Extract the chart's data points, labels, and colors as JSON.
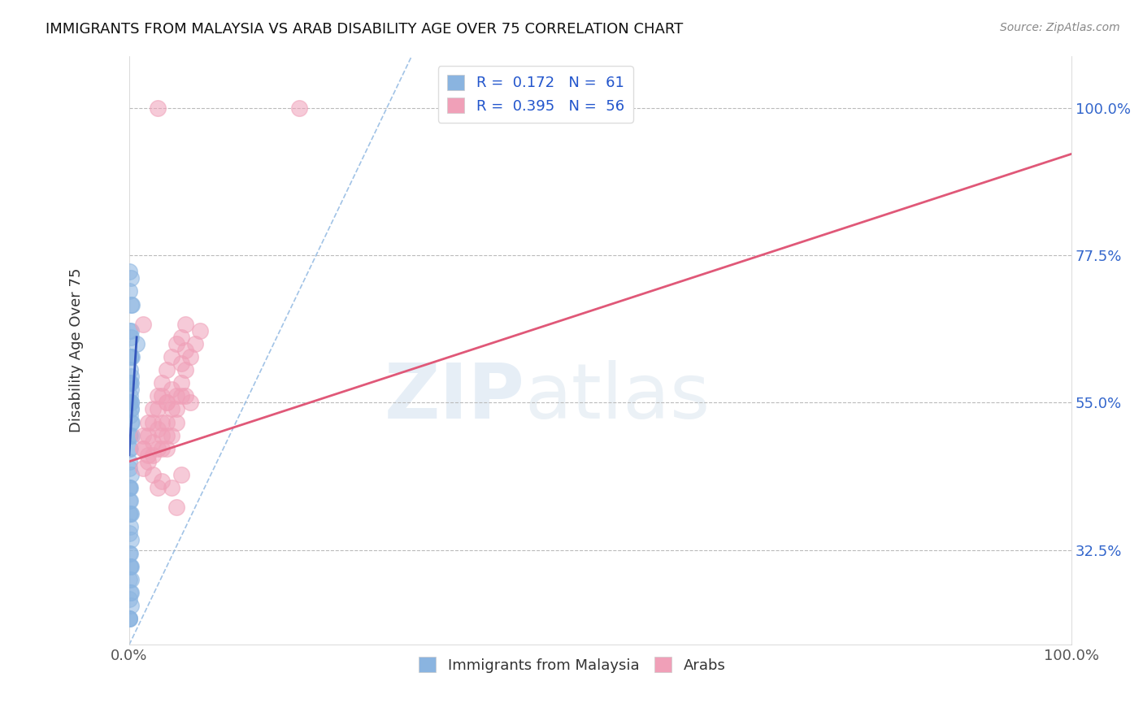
{
  "title": "IMMIGRANTS FROM MALAYSIA VS ARAB DISABILITY AGE OVER 75 CORRELATION CHART",
  "source": "Source: ZipAtlas.com",
  "ylabel": "Disability Age Over 75",
  "xlim": [
    0,
    100
  ],
  "ylim": [
    18,
    108
  ],
  "yticks": [
    32.5,
    55.0,
    77.5,
    100.0
  ],
  "xtick_labels": [
    "0.0%",
    "100.0%"
  ],
  "ytick_labels": [
    "32.5%",
    "55.0%",
    "77.5%",
    "100.0%"
  ],
  "blue_color": "#8ab4e0",
  "pink_color": "#f0a0b8",
  "watermark_zip": "ZIP",
  "watermark_atlas": "atlas",
  "malaysia_scatter": [
    [
      0.05,
      55
    ],
    [
      0.1,
      60
    ],
    [
      0.15,
      65
    ],
    [
      0.2,
      58
    ],
    [
      0.25,
      62
    ],
    [
      0.3,
      70
    ],
    [
      0.05,
      50
    ],
    [
      0.1,
      48
    ],
    [
      0.05,
      45
    ],
    [
      0.15,
      52
    ],
    [
      0.05,
      42
    ],
    [
      0.1,
      40
    ],
    [
      0.05,
      38
    ],
    [
      0.05,
      35
    ],
    [
      0.1,
      32
    ],
    [
      0.05,
      28
    ],
    [
      0.05,
      25
    ],
    [
      0.05,
      22
    ],
    [
      0.1,
      30
    ],
    [
      0.2,
      55
    ],
    [
      0.05,
      58
    ],
    [
      0.1,
      62
    ],
    [
      0.15,
      66
    ],
    [
      0.05,
      72
    ],
    [
      0.05,
      75
    ],
    [
      0.1,
      56
    ],
    [
      0.2,
      54
    ],
    [
      0.3,
      52
    ],
    [
      0.05,
      48
    ],
    [
      0.15,
      44
    ],
    [
      0.1,
      42
    ],
    [
      0.05,
      40
    ],
    [
      0.15,
      38
    ],
    [
      0.1,
      36
    ],
    [
      0.05,
      32
    ],
    [
      0.2,
      30
    ],
    [
      0.15,
      28
    ],
    [
      0.1,
      26
    ],
    [
      0.05,
      22
    ],
    [
      0.2,
      24
    ],
    [
      0.05,
      46
    ],
    [
      0.1,
      50
    ],
    [
      0.15,
      54
    ],
    [
      0.1,
      58
    ],
    [
      0.15,
      62
    ],
    [
      0.05,
      66
    ],
    [
      0.2,
      70
    ],
    [
      0.2,
      74
    ],
    [
      0.05,
      42
    ],
    [
      0.1,
      38
    ],
    [
      0.15,
      34
    ],
    [
      0.1,
      30
    ],
    [
      0.15,
      26
    ],
    [
      0.05,
      22
    ],
    [
      0.8,
      64
    ],
    [
      0.15,
      55
    ],
    [
      0.3,
      50
    ],
    [
      0.05,
      55
    ],
    [
      0.1,
      53
    ],
    [
      0.15,
      57
    ],
    [
      0.2,
      59
    ]
  ],
  "arab_scatter": [
    [
      3,
      100
    ],
    [
      1.5,
      67
    ],
    [
      2.5,
      47
    ],
    [
      3,
      48
    ],
    [
      3.5,
      52
    ],
    [
      4,
      55
    ],
    [
      1.5,
      50
    ],
    [
      2,
      52
    ],
    [
      2.5,
      54
    ],
    [
      3,
      56
    ],
    [
      3.5,
      58
    ],
    [
      4,
      60
    ],
    [
      4.5,
      62
    ],
    [
      5,
      64
    ],
    [
      5.5,
      65
    ],
    [
      6,
      67
    ],
    [
      1.5,
      48
    ],
    [
      2,
      46
    ],
    [
      2.5,
      44
    ],
    [
      3,
      42
    ],
    [
      3.5,
      50
    ],
    [
      4,
      52
    ],
    [
      4.5,
      54
    ],
    [
      5,
      56
    ],
    [
      5.5,
      58
    ],
    [
      6,
      60
    ],
    [
      6.5,
      62
    ],
    [
      7,
      64
    ],
    [
      7.5,
      66
    ],
    [
      1.5,
      45
    ],
    [
      2,
      47
    ],
    [
      2.5,
      49
    ],
    [
      3,
      51
    ],
    [
      3.5,
      43
    ],
    [
      4,
      55
    ],
    [
      4.5,
      57
    ],
    [
      5,
      39
    ],
    [
      5.5,
      61
    ],
    [
      6,
      63
    ],
    [
      6.5,
      55
    ],
    [
      1.5,
      48
    ],
    [
      2,
      50
    ],
    [
      2.5,
      52
    ],
    [
      3,
      54
    ],
    [
      3.5,
      56
    ],
    [
      4,
      48
    ],
    [
      4.5,
      50
    ],
    [
      5,
      52
    ],
    [
      5.5,
      44
    ],
    [
      6,
      56
    ],
    [
      18,
      100
    ],
    [
      3.5,
      48
    ],
    [
      4,
      50
    ],
    [
      4.5,
      42
    ],
    [
      5,
      54
    ],
    [
      5.5,
      56
    ]
  ],
  "pink_line_x": [
    0,
    100
  ],
  "pink_line_y": [
    46,
    93
  ],
  "blue_line_x": [
    0,
    0.8
  ],
  "blue_line_y": [
    47,
    65
  ],
  "diag_line_x": [
    0,
    30
  ],
  "diag_line_y": [
    18,
    108
  ]
}
